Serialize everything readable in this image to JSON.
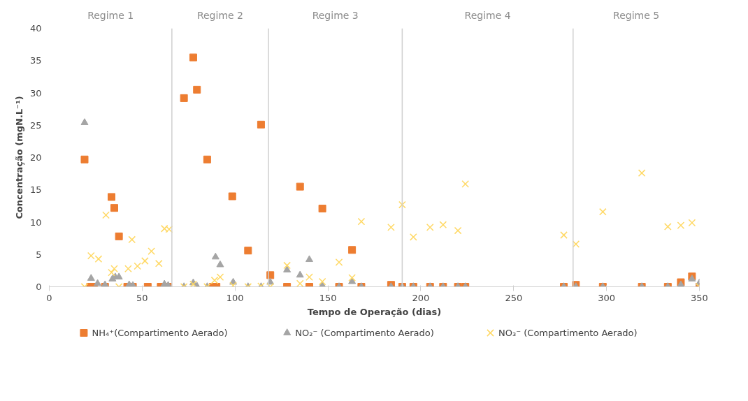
{
  "chart_data": {
    "type": "scatter",
    "xlabel": "Tempo de Operação (dias)",
    "ylabel": "Concentração (mgN.L⁻¹)",
    "xlim": [
      0,
      350
    ],
    "xticks": [
      0,
      50,
      100,
      150,
      200,
      250,
      300,
      350
    ],
    "ylim": [
      0,
      40
    ],
    "yticks": [
      0,
      5,
      10,
      15,
      20,
      25,
      30,
      35,
      40
    ],
    "grid": false,
    "legend": "bottom",
    "ref_lines": [
      {
        "axis": "x",
        "value": 66,
        "label": null,
        "color": "#d0d0d0"
      },
      {
        "axis": "x",
        "value": 118,
        "label": null,
        "color": "#d0d0d0"
      },
      {
        "axis": "x",
        "value": 190,
        "label": null,
        "color": "#d0d0d0"
      },
      {
        "axis": "x",
        "value": 282,
        "label": null,
        "color": "#d0d0d0"
      }
    ],
    "annotations": [
      "Regime 1",
      "Regime 2",
      "Regime 3",
      "Regime 4",
      "Regime 5"
    ],
    "series": [
      {
        "name": "NH₄⁺(Compartimento Aerado)",
        "color": "#ed7d31",
        "marker": "square",
        "x": [
          19,
          22,
          24,
          30,
          33.5,
          35,
          37.5,
          42,
          45,
          53,
          60,
          64,
          72.5,
          77.5,
          79.5,
          85,
          88,
          90,
          98.5,
          107,
          114,
          119,
          128,
          135,
          140,
          147,
          156,
          163,
          168,
          184,
          190,
          196,
          205,
          212,
          220,
          224,
          277,
          283.5,
          298,
          319,
          333,
          340,
          346,
          350
        ],
        "values": [
          19.7,
          0,
          0,
          0,
          13.9,
          12.2,
          7.8,
          0,
          0,
          0,
          0,
          0,
          29.2,
          35.5,
          30.5,
          19.7,
          0,
          0,
          14.0,
          5.6,
          25.1,
          1.8,
          0,
          15.5,
          0,
          12.1,
          0,
          5.7,
          0,
          0.3,
          0,
          0,
          0,
          0,
          0,
          0,
          0,
          0.3,
          0,
          0,
          0,
          0.7,
          1.6,
          0
        ]
      },
      {
        "name": "NO₂⁻ (Compartimento Aerado)",
        "color": "#a5a5a5",
        "marker": "triangle",
        "x": [
          19,
          22.5,
          26,
          30,
          34,
          35.5,
          37.5,
          43,
          45,
          62,
          64,
          72.5,
          77.5,
          79.5,
          85,
          89.5,
          92,
          99,
          107,
          114,
          119,
          128,
          135,
          140,
          147,
          156,
          163,
          168,
          184,
          190,
          196,
          205,
          212,
          220,
          224,
          277,
          283.5,
          298,
          319,
          333,
          340,
          346,
          350
        ],
        "values": [
          25.4,
          1.3,
          0.5,
          0.3,
          1.2,
          1.5,
          1.5,
          0.3,
          0.2,
          0.4,
          0.2,
          0,
          0.6,
          0.1,
          0,
          4.6,
          3.4,
          0.7,
          0,
          0,
          0.7,
          2.6,
          1.8,
          4.2,
          0.2,
          0,
          0.8,
          0,
          0,
          0,
          0,
          0,
          0,
          0,
          0,
          0,
          0,
          0,
          0,
          0,
          0.3,
          1.2,
          0.6
        ]
      },
      {
        "name": "NO₃⁻ (Compartimento Aerado)",
        "color": "#ffd966",
        "marker": "cross",
        "x": [
          19,
          22.5,
          26.5,
          30.5,
          33.5,
          35,
          37.5,
          42.5,
          44.5,
          47.5,
          51.5,
          55,
          59,
          62,
          64.5,
          72.5,
          77.5,
          85,
          89,
          92,
          99,
          107,
          114,
          119,
          128,
          135,
          140,
          147,
          156,
          163,
          168,
          184,
          190,
          196,
          205,
          212,
          220,
          224,
          277,
          283.5,
          298,
          319,
          333,
          340,
          346,
          350
        ],
        "values": [
          0,
          4.8,
          4.3,
          11.1,
          2.2,
          2.8,
          0,
          2.8,
          7.3,
          3.2,
          4.0,
          5.5,
          3.6,
          9.0,
          8.9,
          0,
          0.4,
          0,
          1.0,
          1.5,
          0.2,
          0,
          0.1,
          0,
          3.3,
          0.5,
          1.5,
          0.8,
          3.8,
          1.4,
          10.1,
          9.2,
          12.7,
          7.7,
          9.2,
          9.6,
          8.7,
          15.9,
          8.0,
          6.6,
          11.6,
          17.6,
          9.3,
          9.5,
          9.9,
          0
        ]
      }
    ]
  }
}
